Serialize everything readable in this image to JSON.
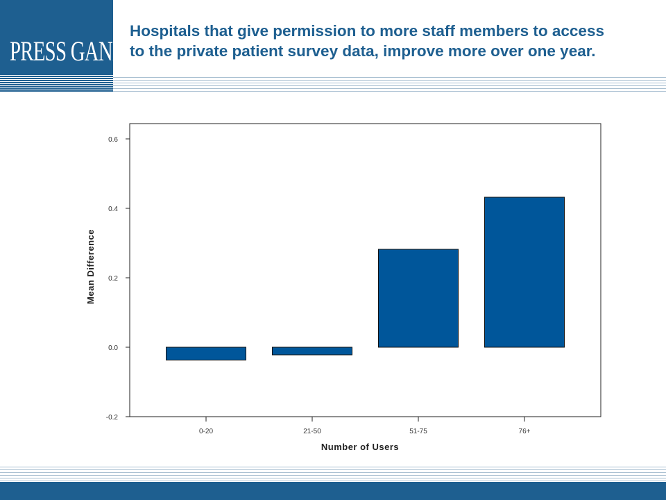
{
  "brand": {
    "logo_text": "PRESS GANEY",
    "color": "#1e5f90"
  },
  "title": "Hospitals that give permission to more staff members to access to the private patient survey data, improve more over one year.",
  "chart_data": {
    "type": "bar",
    "categories": [
      "0-20",
      "21-50",
      "51-75",
      "76+"
    ],
    "values": [
      -0.037,
      -0.022,
      0.282,
      0.432
    ],
    "bar_color": "#00569a",
    "xlabel": "Number of Users",
    "ylabel": "Mean Difference",
    "ylim": [
      -0.2,
      0.644
    ],
    "yticks": [
      -0.2,
      0.0,
      0.2,
      0.4,
      0.6
    ],
    "ytick_labels": [
      "-0.2",
      "0.0",
      "0.2",
      "0.4",
      "0.6"
    ],
    "grid": false,
    "legend": "none"
  }
}
